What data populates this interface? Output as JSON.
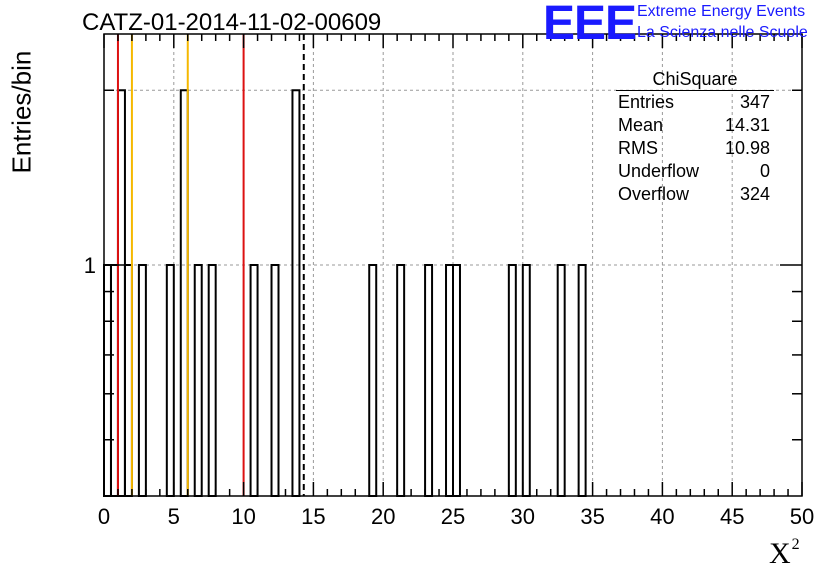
{
  "chart_data": {
    "type": "bar",
    "title": "CATZ-01-2014-11-02-00609",
    "xlabel": "X",
    "xlabel_sup": "2",
    "ylabel": "Entries/bin",
    "xlim": [
      0,
      50
    ],
    "ylog": true,
    "ylim": [
      0.4,
      2.5
    ],
    "grid": true,
    "x_ticks": [
      0,
      5,
      10,
      15,
      20,
      25,
      30,
      35,
      40,
      45,
      50
    ],
    "y_tick_labels": [
      {
        "value": 1,
        "label": "1"
      }
    ],
    "bin_width": 0.5,
    "bins": [
      {
        "x": 0.0,
        "value": 1
      },
      {
        "x": 0.5,
        "value": 1
      },
      {
        "x": 1.0,
        "value": 2
      },
      {
        "x": 1.5,
        "value": 1
      },
      {
        "x": 2.5,
        "value": 1
      },
      {
        "x": 4.5,
        "value": 1
      },
      {
        "x": 5.5,
        "value": 2
      },
      {
        "x": 6.5,
        "value": 1
      },
      {
        "x": 7.5,
        "value": 1
      },
      {
        "x": 10.5,
        "value": 1
      },
      {
        "x": 12.0,
        "value": 1
      },
      {
        "x": 13.5,
        "value": 2
      },
      {
        "x": 19.0,
        "value": 1
      },
      {
        "x": 21.0,
        "value": 1
      },
      {
        "x": 23.0,
        "value": 1
      },
      {
        "x": 24.5,
        "value": 1
      },
      {
        "x": 25.0,
        "value": 1
      },
      {
        "x": 29.0,
        "value": 1
      },
      {
        "x": 30.0,
        "value": 1
      },
      {
        "x": 32.5,
        "value": 1
      },
      {
        "x": 34.0,
        "value": 1
      }
    ],
    "vertical_lines": [
      {
        "x": 1.0,
        "color": "#dd1111",
        "style": "solid"
      },
      {
        "x": 2.0,
        "color": "#f5b800",
        "style": "solid"
      },
      {
        "x": 6.0,
        "color": "#f5b800",
        "style": "solid"
      },
      {
        "x": 10.0,
        "color": "#dd1111",
        "style": "solid"
      },
      {
        "x": 14.31,
        "color": "#000000",
        "style": "dashed"
      }
    ],
    "stats_box": {
      "title": "ChiSquare",
      "rows": [
        {
          "label": "Entries",
          "value": "347"
        },
        {
          "label": "Mean",
          "value": "14.31"
        },
        {
          "label": "RMS",
          "value": "10.98"
        },
        {
          "label": "Underflow",
          "value": "0"
        },
        {
          "label": "Overflow",
          "value": "324"
        }
      ]
    }
  },
  "logo": {
    "mark": "EEE",
    "line1": "Extreme Energy Events",
    "line2": "La Scienza nelle Scuole",
    "color": "#1a1aff"
  }
}
